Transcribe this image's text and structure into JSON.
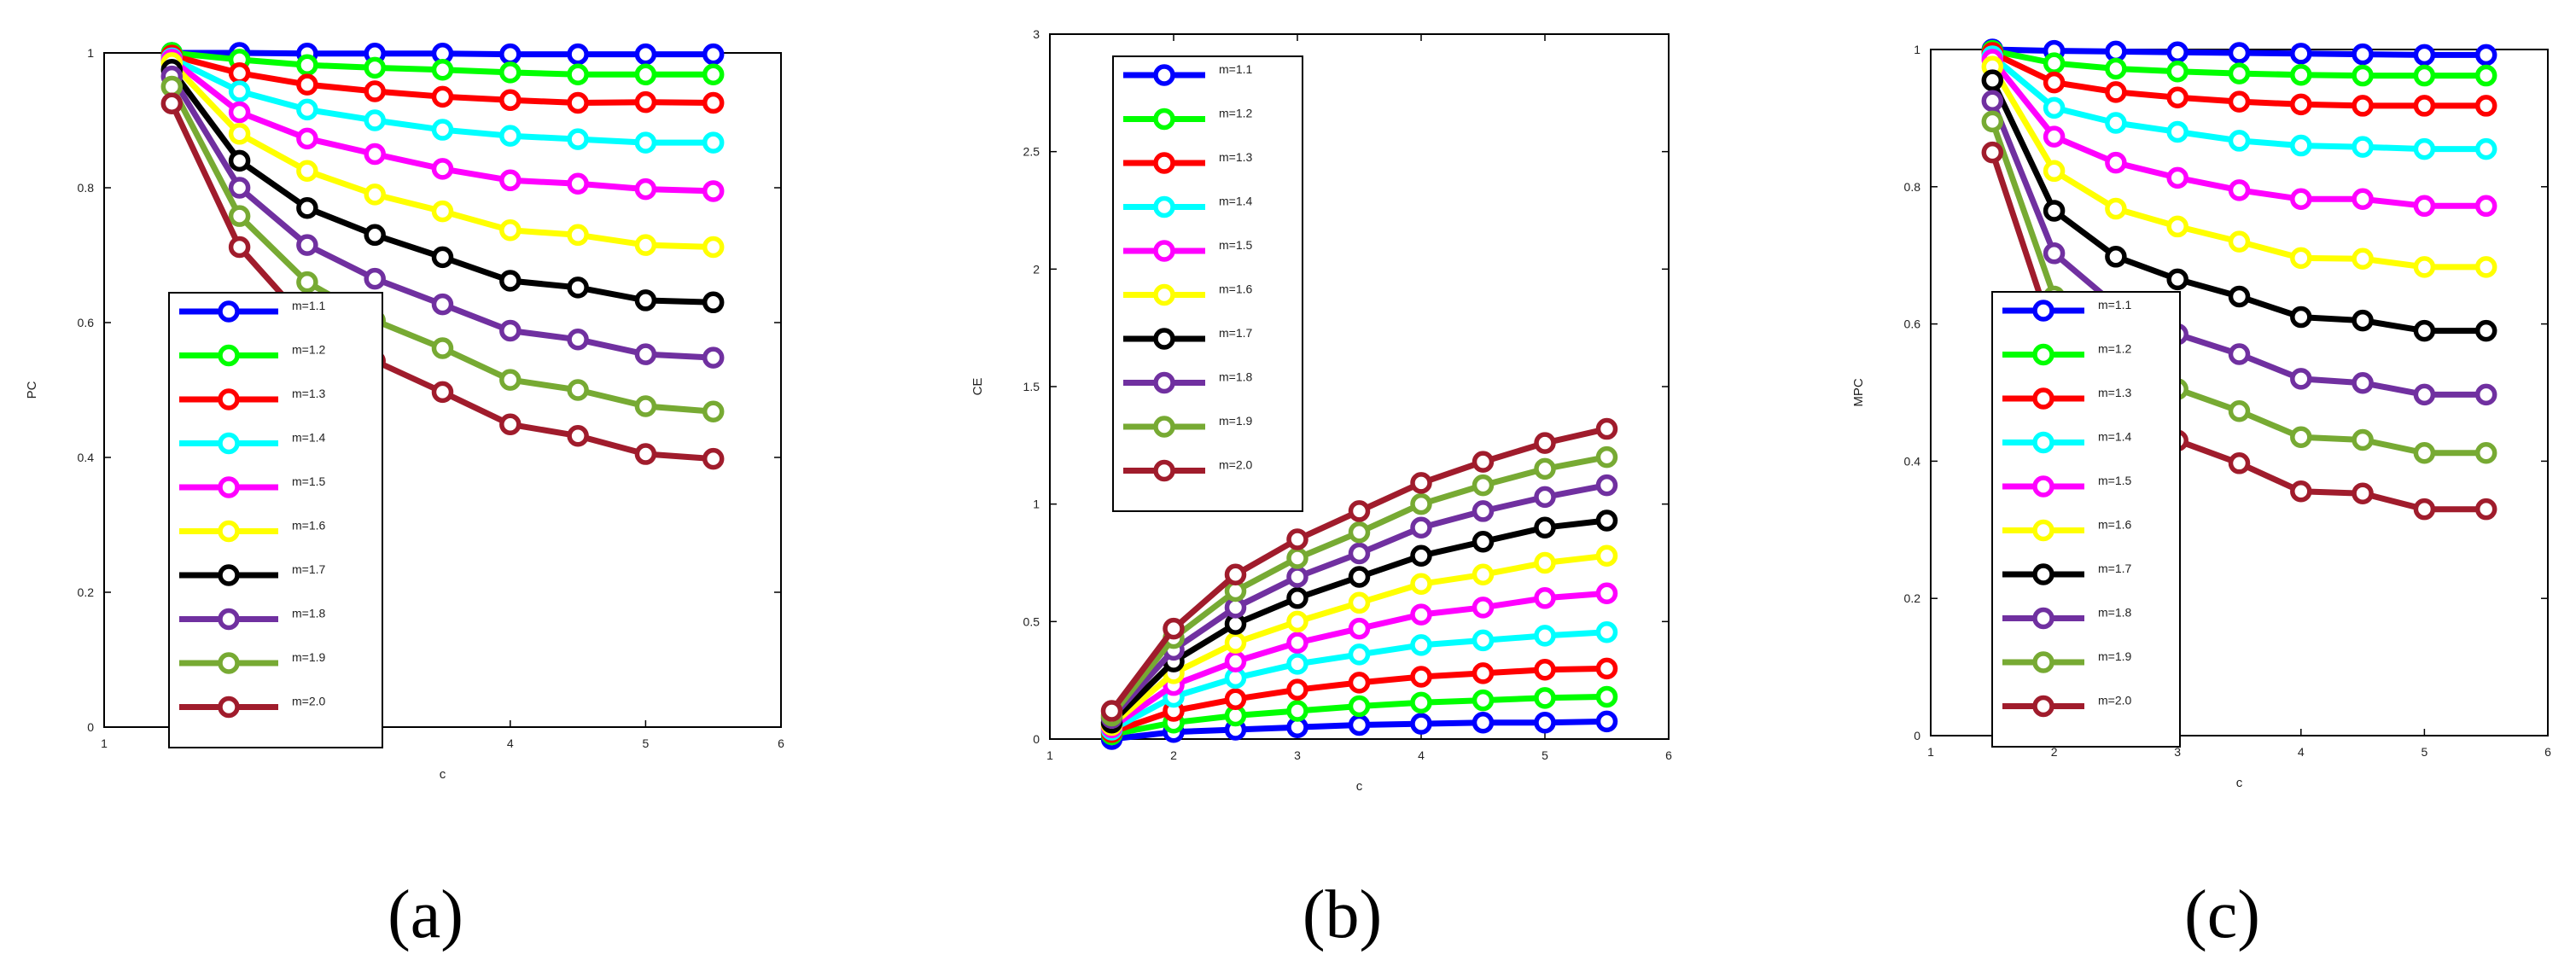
{
  "chart_data": [
    {
      "type": "line",
      "panel_label": "(a)",
      "title": "",
      "xlabel": "c",
      "ylabel": "PC",
      "xlim": [
        1,
        6
      ],
      "ylim": [
        0,
        1
      ],
      "xticks": [
        1,
        2,
        3,
        4,
        5,
        6
      ],
      "yticks": [
        0,
        0.2,
        0.4,
        0.6,
        0.8,
        1
      ],
      "ytick_labels": [
        "0",
        "0.2",
        "0.4",
        "0.6",
        "0.8",
        "1"
      ],
      "legend_position": "lower-left",
      "x": [
        1.5,
        2,
        2.5,
        3,
        3.5,
        4,
        4.5,
        5,
        5.5
      ],
      "series": [
        {
          "name": "m=1.1",
          "color": "#0000ff",
          "values": [
            1.0,
            1.0,
            0.999,
            0.999,
            0.999,
            0.998,
            0.998,
            0.998,
            0.998
          ]
        },
        {
          "name": "m=1.2",
          "color": "#00ff00",
          "values": [
            1.0,
            0.99,
            0.982,
            0.978,
            0.975,
            0.971,
            0.968,
            0.968,
            0.968
          ]
        },
        {
          "name": "m=1.3",
          "color": "#ff0000",
          "values": [
            0.996,
            0.97,
            0.953,
            0.943,
            0.935,
            0.93,
            0.926,
            0.927,
            0.926
          ]
        },
        {
          "name": "m=1.4",
          "color": "#00ffff",
          "values": [
            0.992,
            0.943,
            0.916,
            0.9,
            0.886,
            0.877,
            0.872,
            0.867,
            0.867
          ]
        },
        {
          "name": "m=1.5",
          "color": "#ff00ff",
          "values": [
            0.99,
            0.912,
            0.873,
            0.85,
            0.828,
            0.811,
            0.806,
            0.798,
            0.795
          ]
        },
        {
          "name": "m=1.6",
          "color": "#ffff00",
          "values": [
            0.985,
            0.88,
            0.825,
            0.79,
            0.765,
            0.737,
            0.73,
            0.715,
            0.712
          ]
        },
        {
          "name": "m=1.7",
          "color": "#000000",
          "values": [
            0.975,
            0.84,
            0.77,
            0.73,
            0.697,
            0.662,
            0.652,
            0.633,
            0.63
          ]
        },
        {
          "name": "m=1.8",
          "color": "#7030a0",
          "values": [
            0.965,
            0.8,
            0.715,
            0.665,
            0.627,
            0.588,
            0.575,
            0.553,
            0.548
          ]
        },
        {
          "name": "m=1.9",
          "color": "#77aa33",
          "values": [
            0.95,
            0.758,
            0.66,
            0.603,
            0.562,
            0.515,
            0.5,
            0.476,
            0.468
          ]
        },
        {
          "name": "m=2.0",
          "color": "#a01c2c",
          "values": [
            0.925,
            0.712,
            0.6,
            0.543,
            0.497,
            0.449,
            0.432,
            0.405,
            0.398
          ]
        }
      ]
    },
    {
      "type": "line",
      "panel_label": "(b)",
      "title": "",
      "xlabel": "c",
      "ylabel": "CE",
      "xlim": [
        1,
        6
      ],
      "ylim": [
        0,
        3
      ],
      "xticks": [
        1,
        2,
        3,
        4,
        5,
        6
      ],
      "yticks": [
        0,
        0.5,
        1,
        1.5,
        2,
        2.5,
        3
      ],
      "ytick_labels": [
        "0",
        "0.5",
        "1",
        "1.5",
        "2",
        "2.5",
        "3"
      ],
      "legend_position": "upper-left",
      "x": [
        1.5,
        2,
        2.5,
        3,
        3.5,
        4,
        4.5,
        5,
        5.5
      ],
      "series": [
        {
          "name": "m=1.1",
          "color": "#0000ff",
          "values": [
            0.0,
            0.03,
            0.04,
            0.05,
            0.06,
            0.065,
            0.07,
            0.07,
            0.075
          ]
        },
        {
          "name": "m=1.2",
          "color": "#00ff00",
          "values": [
            0.02,
            0.07,
            0.1,
            0.12,
            0.14,
            0.155,
            0.165,
            0.175,
            0.18
          ]
        },
        {
          "name": "m=1.3",
          "color": "#ff0000",
          "values": [
            0.03,
            0.12,
            0.17,
            0.21,
            0.24,
            0.265,
            0.28,
            0.295,
            0.3
          ]
        },
        {
          "name": "m=1.4",
          "color": "#00ffff",
          "values": [
            0.04,
            0.18,
            0.26,
            0.32,
            0.36,
            0.4,
            0.42,
            0.44,
            0.455
          ]
        },
        {
          "name": "m=1.5",
          "color": "#ff00ff",
          "values": [
            0.05,
            0.23,
            0.33,
            0.41,
            0.47,
            0.53,
            0.56,
            0.6,
            0.62
          ]
        },
        {
          "name": "m=1.6",
          "color": "#ffff00",
          "values": [
            0.06,
            0.28,
            0.41,
            0.5,
            0.58,
            0.66,
            0.7,
            0.75,
            0.78
          ]
        },
        {
          "name": "m=1.7",
          "color": "#000000",
          "values": [
            0.07,
            0.33,
            0.49,
            0.6,
            0.69,
            0.78,
            0.84,
            0.9,
            0.93
          ]
        },
        {
          "name": "m=1.8",
          "color": "#7030a0",
          "values": [
            0.09,
            0.38,
            0.56,
            0.69,
            0.79,
            0.9,
            0.97,
            1.03,
            1.08
          ]
        },
        {
          "name": "m=1.9",
          "color": "#77aa33",
          "values": [
            0.1,
            0.43,
            0.63,
            0.77,
            0.88,
            1.0,
            1.08,
            1.15,
            1.2
          ]
        },
        {
          "name": "m=2.0",
          "color": "#a01c2c",
          "values": [
            0.12,
            0.47,
            0.7,
            0.85,
            0.97,
            1.09,
            1.18,
            1.26,
            1.32
          ]
        }
      ]
    },
    {
      "type": "line",
      "panel_label": "(c)",
      "title": "",
      "xlabel": "c",
      "ylabel": "MPC",
      "xlim": [
        1,
        6
      ],
      "ylim": [
        0,
        1
      ],
      "xticks": [
        1,
        2,
        3,
        4,
        5,
        6
      ],
      "yticks": [
        0,
        0.2,
        0.4,
        0.6,
        0.8,
        1
      ],
      "ytick_labels": [
        "0",
        "0.2",
        "0.4",
        "0.6",
        "0.8",
        "1"
      ],
      "legend_position": "lower-left",
      "x": [
        1.5,
        2,
        2.5,
        3,
        3.5,
        4,
        4.5,
        5,
        5.5
      ],
      "series": [
        {
          "name": "m=1.1",
          "color": "#0000ff",
          "values": [
            1.0,
            0.998,
            0.997,
            0.996,
            0.995,
            0.994,
            0.993,
            0.992,
            0.992
          ]
        },
        {
          "name": "m=1.2",
          "color": "#00ff00",
          "values": [
            0.998,
            0.98,
            0.972,
            0.968,
            0.965,
            0.963,
            0.962,
            0.962,
            0.962
          ]
        },
        {
          "name": "m=1.3",
          "color": "#ff0000",
          "values": [
            0.995,
            0.952,
            0.938,
            0.93,
            0.924,
            0.92,
            0.918,
            0.918,
            0.918
          ]
        },
        {
          "name": "m=1.4",
          "color": "#00ffff",
          "values": [
            0.99,
            0.915,
            0.893,
            0.88,
            0.867,
            0.86,
            0.858,
            0.855,
            0.855
          ]
        },
        {
          "name": "m=1.5",
          "color": "#ff00ff",
          "values": [
            0.985,
            0.873,
            0.835,
            0.813,
            0.795,
            0.782,
            0.782,
            0.772,
            0.772
          ]
        },
        {
          "name": "m=1.6",
          "color": "#ffff00",
          "values": [
            0.975,
            0.823,
            0.768,
            0.742,
            0.72,
            0.696,
            0.695,
            0.683,
            0.683
          ]
        },
        {
          "name": "m=1.7",
          "color": "#000000",
          "values": [
            0.955,
            0.765,
            0.698,
            0.665,
            0.64,
            0.61,
            0.605,
            0.59,
            0.59
          ]
        },
        {
          "name": "m=1.8",
          "color": "#7030a0",
          "values": [
            0.925,
            0.703,
            0.627,
            0.585,
            0.556,
            0.52,
            0.514,
            0.497,
            0.497
          ]
        },
        {
          "name": "m=1.9",
          "color": "#77aa33",
          "values": [
            0.895,
            0.64,
            0.555,
            0.505,
            0.473,
            0.435,
            0.431,
            0.412,
            0.412
          ]
        },
        {
          "name": "m=2.0",
          "color": "#a01c2c",
          "values": [
            0.85,
            0.58,
            0.48,
            0.43,
            0.397,
            0.356,
            0.353,
            0.33,
            0.33
          ]
        }
      ]
    }
  ]
}
